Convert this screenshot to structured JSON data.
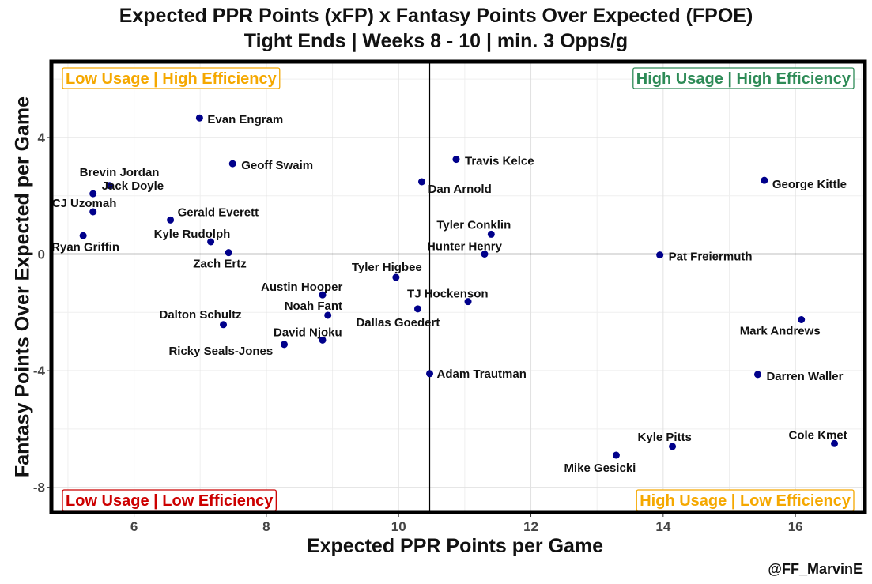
{
  "title_line1": "Expected PPR Points (xFP) x Fantasy Points Over Expected (FPOE)",
  "title_line2": "Tight Ends | Weeks 8 - 10 | min. 3 Opps/g",
  "credit": "@FF_MarvinE",
  "colors": {
    "point": "#00008B",
    "high_high": "#2E8B57",
    "low_high": "#F5A800",
    "high_low": "#F5A800",
    "low_low": "#CC0000"
  },
  "chart_data": {
    "type": "scatter",
    "title": "Expected PPR Points (xFP) x Fantasy Points Over Expected (FPOE)",
    "subtitle": "Tight Ends | Weeks 8 - 10 | min. 3 Opps/g",
    "xlabel": "Expected PPR Points per Game",
    "ylabel": "Fantasy Points Over Expected per Game",
    "xlim": [
      4.75,
      17.05
    ],
    "ylim": [
      -8.85,
      6.6
    ],
    "xticks": [
      6,
      8,
      10,
      12,
      14,
      16
    ],
    "yticks": [
      4,
      0,
      -4,
      -8
    ],
    "ref_x": 10.47,
    "ref_y": 0,
    "grid": true,
    "quadrant_labels": {
      "top_left": "Low Usage | High Efficiency",
      "top_right": "High Usage | High Efficiency",
      "bottom_left": "Low Usage | Low Efficiency",
      "bottom_right": "High Usage | Low Efficiency"
    },
    "points": [
      {
        "label": "Evan Engram",
        "x": 6.99,
        "y": 4.67
      },
      {
        "label": "Geoff Swaim",
        "x": 7.49,
        "y": 3.1
      },
      {
        "label": "Travis Kelce",
        "x": 10.87,
        "y": 3.25
      },
      {
        "label": "Dan Arnold",
        "x": 10.35,
        "y": 2.48
      },
      {
        "label": "George Kittle",
        "x": 15.53,
        "y": 2.53
      },
      {
        "label": "Brevin Jordan",
        "x": 5.63,
        "y": 2.35
      },
      {
        "label": "Jack Doyle",
        "x": 5.38,
        "y": 2.07
      },
      {
        "label": "CJ Uzomah",
        "x": 5.38,
        "y": 1.45
      },
      {
        "label": "Gerald Everett",
        "x": 6.55,
        "y": 1.17
      },
      {
        "label": "Ryan Griffin",
        "x": 5.23,
        "y": 0.63
      },
      {
        "label": "Kyle Rudolph",
        "x": 7.16,
        "y": 0.42
      },
      {
        "label": "Zach Ertz",
        "x": 7.43,
        "y": 0.05
      },
      {
        "label": "Tyler Conklin",
        "x": 11.4,
        "y": 0.68
      },
      {
        "label": "Hunter Henry",
        "x": 11.3,
        "y": 0.0
      },
      {
        "label": "Pat Freiermuth",
        "x": 13.95,
        "y": -0.03
      },
      {
        "label": "Tyler Higbee",
        "x": 9.96,
        "y": -0.8
      },
      {
        "label": "Austin Hooper",
        "x": 8.85,
        "y": -1.4
      },
      {
        "label": "TJ Hockenson",
        "x": 11.05,
        "y": -1.63
      },
      {
        "label": "Noah Fant",
        "x": 8.93,
        "y": -2.1
      },
      {
        "label": "Dallas Goedert",
        "x": 10.29,
        "y": -1.88
      },
      {
        "label": "Dalton Schultz",
        "x": 7.35,
        "y": -2.42
      },
      {
        "label": "David Njoku",
        "x": 8.85,
        "y": -2.95
      },
      {
        "label": "Ricky Seals-Jones",
        "x": 8.27,
        "y": -3.1
      },
      {
        "label": "Mark Andrews",
        "x": 16.09,
        "y": -2.25
      },
      {
        "label": "Adam Trautman",
        "x": 10.47,
        "y": -4.1
      },
      {
        "label": "Darren Waller",
        "x": 15.43,
        "y": -4.13
      },
      {
        "label": "Kyle Pitts",
        "x": 14.14,
        "y": -6.6
      },
      {
        "label": "Cole Kmet",
        "x": 16.59,
        "y": -6.5
      },
      {
        "label": "Mike Gesicki",
        "x": 13.29,
        "y": -6.9
      }
    ]
  }
}
